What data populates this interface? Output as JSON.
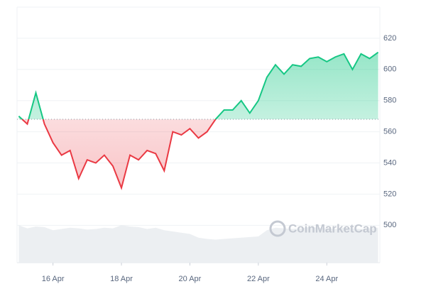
{
  "chart_data": {
    "type": "line",
    "x": [
      15.0,
      15.25,
      15.5,
      15.75,
      16.0,
      16.25,
      16.5,
      16.75,
      17.0,
      17.25,
      17.5,
      17.75,
      18.0,
      18.25,
      18.5,
      18.75,
      19.0,
      19.25,
      19.5,
      19.75,
      20.0,
      20.25,
      20.5,
      20.75,
      21.0,
      21.25,
      21.5,
      21.75,
      22.0,
      22.25,
      22.5,
      22.75,
      23.0,
      23.25,
      23.5,
      23.75,
      24.0,
      24.25,
      24.5,
      24.75,
      25.0,
      25.25,
      25.5
    ],
    "values": [
      570,
      565,
      585,
      565,
      553,
      545,
      548,
      530,
      542,
      540,
      545,
      538,
      524,
      545,
      542,
      548,
      546,
      535,
      560,
      558,
      562,
      556,
      560,
      568,
      574,
      574,
      580,
      572,
      580,
      595,
      603,
      597,
      603,
      602,
      607,
      608,
      605,
      608,
      610,
      600,
      610,
      607,
      611
    ],
    "volume": [
      60,
      55,
      58,
      57,
      52,
      54,
      56,
      55,
      53,
      54,
      56,
      55,
      60,
      58,
      57,
      54,
      56,
      52,
      50,
      48,
      46,
      40,
      38,
      37,
      38,
      39,
      40,
      41,
      42,
      52,
      56,
      55,
      54,
      55,
      57,
      56,
      55,
      54,
      56,
      55,
      54,
      55,
      56
    ],
    "volume_ylim": [
      0,
      100
    ],
    "baseline": 568,
    "up_color": "#16c784",
    "down_color": "#ea3943",
    "xlim": [
      14.95,
      25.55
    ],
    "xticks": [
      {
        "value": 16,
        "label": "16 Apr"
      },
      {
        "value": 18,
        "label": "18 Apr"
      },
      {
        "value": 20,
        "label": "20 Apr"
      },
      {
        "value": 22,
        "label": "22 Apr"
      },
      {
        "value": 24,
        "label": "24 Apr"
      }
    ],
    "ylim": [
      476,
      640
    ],
    "yticks": [
      500,
      520,
      540,
      560,
      580,
      600,
      620
    ],
    "grid": true,
    "watermark": "CoinMarketCap"
  }
}
